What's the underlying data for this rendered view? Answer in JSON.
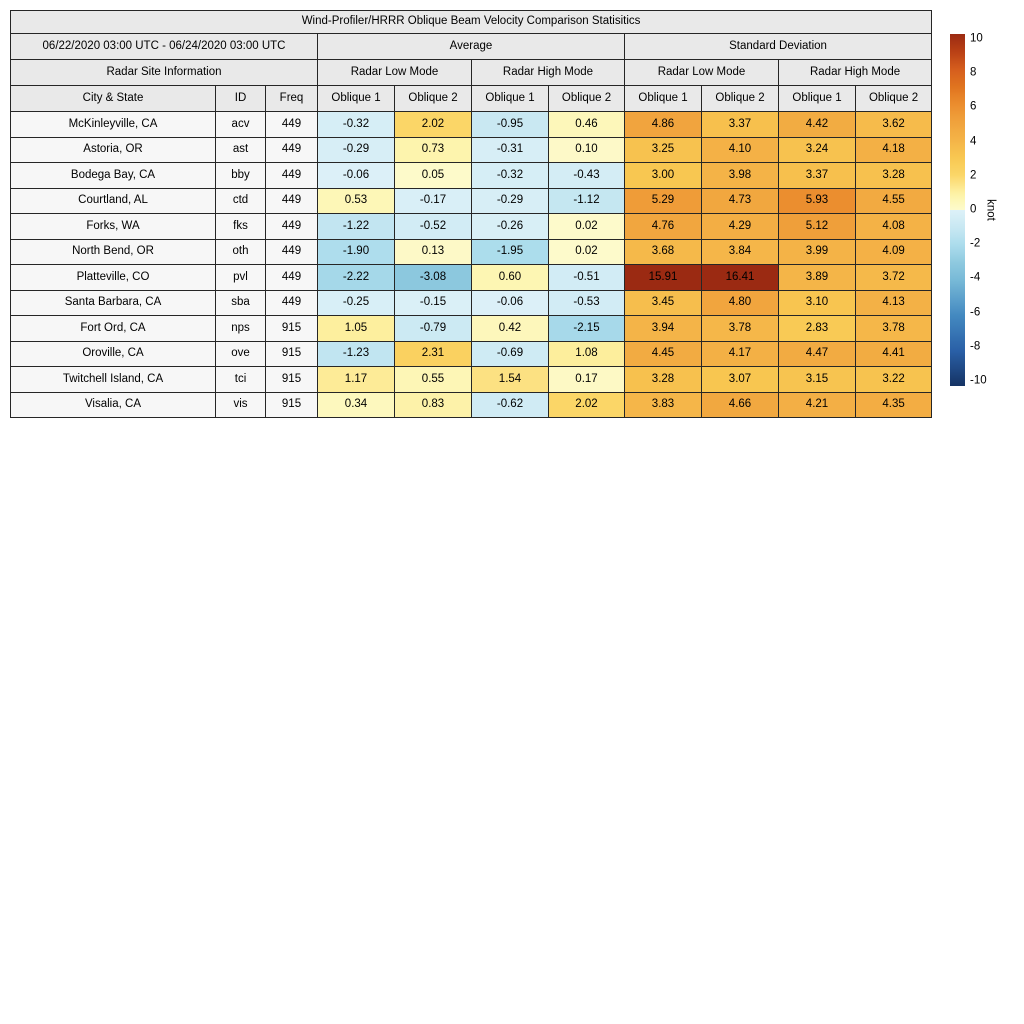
{
  "figure": {
    "title": "Wind-Profiler/HRRR Oblique Beam Velocity Comparison Statisitics",
    "date_range": "06/22/2020 03:00 UTC - 06/24/2020 03:00 UTC",
    "group_headers": {
      "average": "Average",
      "std": "Standard Deviation"
    },
    "site_info_header": "Radar Site Information",
    "mode_headers": [
      "Radar Low Mode",
      "Radar High Mode",
      "Radar Low Mode",
      "Radar High Mode"
    ],
    "col_headers": [
      "City & State",
      "ID",
      "Freq",
      "Oblique 1",
      "Oblique 2",
      "Oblique 1",
      "Oblique 2",
      "Oblique 1",
      "Oblique 2",
      "Oblique 1",
      "Oblique 2"
    ]
  },
  "chart_data": {
    "type": "heatmap",
    "title": "Wind-Profiler/HRRR Oblique Beam Velocity Comparison Statisitics",
    "value_columns": [
      "Average Radar Low Mode Oblique 1",
      "Average Radar Low Mode Oblique 2",
      "Average Radar High Mode Oblique 1",
      "Average Radar High Mode Oblique 2",
      "Std Radar Low Mode Oblique 1",
      "Std Radar Low Mode Oblique 2",
      "Std Radar High Mode Oblique 1",
      "Std Radar High Mode Oblique 2"
    ],
    "rows": [
      {
        "city": "McKinleyville, CA",
        "id": "acv",
        "freq": "449",
        "values": [
          -0.32,
          2.02,
          -0.95,
          0.46,
          4.86,
          3.37,
          4.42,
          3.62
        ]
      },
      {
        "city": "Astoria, OR",
        "id": "ast",
        "freq": "449",
        "values": [
          -0.29,
          0.73,
          -0.31,
          0.1,
          3.25,
          4.1,
          3.24,
          4.18
        ]
      },
      {
        "city": "Bodega Bay, CA",
        "id": "bby",
        "freq": "449",
        "values": [
          -0.06,
          0.05,
          -0.32,
          -0.43,
          3.0,
          3.98,
          3.37,
          3.28
        ]
      },
      {
        "city": "Courtland, AL",
        "id": "ctd",
        "freq": "449",
        "values": [
          0.53,
          -0.17,
          -0.29,
          -1.12,
          5.29,
          4.73,
          5.93,
          4.55
        ]
      },
      {
        "city": "Forks, WA",
        "id": "fks",
        "freq": "449",
        "values": [
          -1.22,
          -0.52,
          -0.26,
          0.02,
          4.76,
          4.29,
          5.12,
          4.08
        ]
      },
      {
        "city": "North Bend, OR",
        "id": "oth",
        "freq": "449",
        "values": [
          -1.9,
          0.13,
          -1.95,
          0.02,
          3.68,
          3.84,
          3.99,
          4.09
        ]
      },
      {
        "city": "Platteville, CO",
        "id": "pvl",
        "freq": "449",
        "values": [
          -2.22,
          -3.08,
          0.6,
          -0.51,
          15.91,
          16.41,
          3.89,
          3.72
        ]
      },
      {
        "city": "Santa Barbara, CA",
        "id": "sba",
        "freq": "449",
        "values": [
          -0.25,
          -0.15,
          -0.06,
          -0.53,
          3.45,
          4.8,
          3.1,
          4.13
        ]
      },
      {
        "city": "Fort Ord, CA",
        "id": "nps",
        "freq": "915",
        "values": [
          1.05,
          -0.79,
          0.42,
          -2.15,
          3.94,
          3.78,
          2.83,
          3.78
        ]
      },
      {
        "city": "Oroville, CA",
        "id": "ove",
        "freq": "915",
        "values": [
          -1.23,
          2.31,
          -0.69,
          1.08,
          4.45,
          4.17,
          4.47,
          4.41
        ]
      },
      {
        "city": "Twitchell Island, CA",
        "id": "tci",
        "freq": "915",
        "values": [
          1.17,
          0.55,
          1.54,
          0.17,
          3.28,
          3.07,
          3.15,
          3.22
        ]
      },
      {
        "city": "Visalia, CA",
        "id": "vis",
        "freq": "915",
        "values": [
          0.34,
          0.83,
          -0.62,
          2.02,
          3.83,
          4.66,
          4.21,
          4.35
        ]
      }
    ],
    "colorbar": {
      "label": "knot",
      "min": -10,
      "max": 10,
      "ticks": [
        10,
        8,
        6,
        4,
        2,
        0,
        -2,
        -4,
        -6,
        -8,
        -10
      ],
      "colormap_stops": [
        {
          "value": -10,
          "color": "#153364"
        },
        {
          "value": -8,
          "color": "#2a60a7"
        },
        {
          "value": -6,
          "color": "#4389c0"
        },
        {
          "value": -4,
          "color": "#77b9d7"
        },
        {
          "value": -3,
          "color": "#8ec9df"
        },
        {
          "value": -2,
          "color": "#abdcec"
        },
        {
          "value": -1,
          "color": "#c8e8f2"
        },
        {
          "value": -0.001,
          "color": "#ddf1f8"
        },
        {
          "value": 0.001,
          "color": "#fdfacc"
        },
        {
          "value": 0.5,
          "color": "#fdf7b8"
        },
        {
          "value": 1,
          "color": "#fdf0a1"
        },
        {
          "value": 1.5,
          "color": "#fce284"
        },
        {
          "value": 2,
          "color": "#fbd667"
        },
        {
          "value": 3,
          "color": "#f8c751"
        },
        {
          "value": 4,
          "color": "#f4b347"
        },
        {
          "value": 5,
          "color": "#f0a23c"
        },
        {
          "value": 6,
          "color": "#eb8d2e"
        },
        {
          "value": 7,
          "color": "#e0741f"
        },
        {
          "value": 8,
          "color": "#d55d1d"
        },
        {
          "value": 9,
          "color": "#b94015"
        },
        {
          "value": 10,
          "color": "#9b2a12"
        }
      ]
    }
  }
}
